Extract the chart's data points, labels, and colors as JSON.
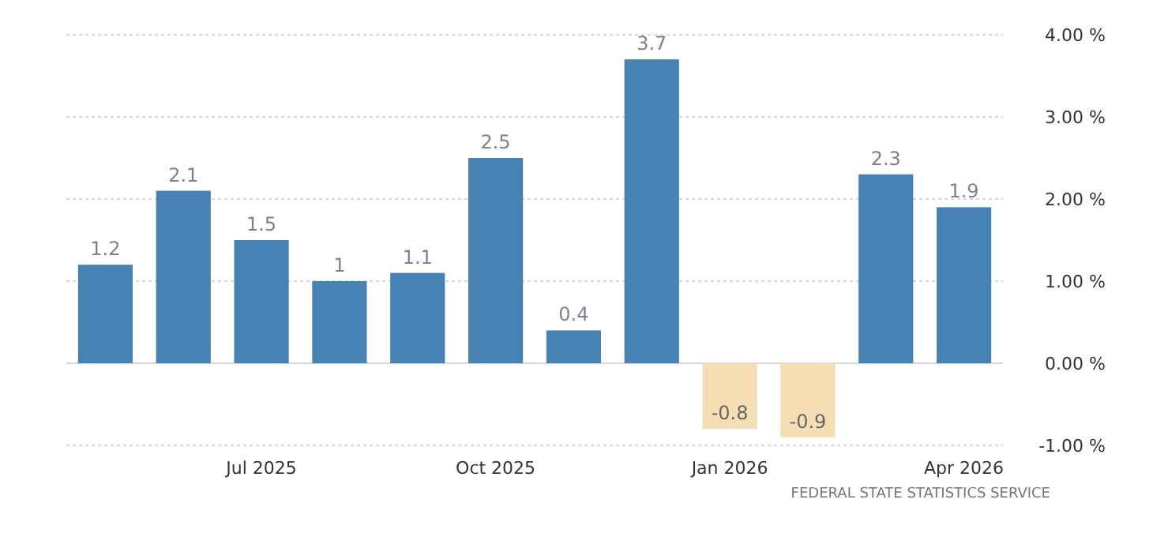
{
  "chart_data": {
    "type": "bar",
    "categories": [
      null,
      null,
      "Jul 2025",
      null,
      null,
      "Oct 2025",
      null,
      null,
      "Jan 2026",
      null,
      null,
      "Apr 2026"
    ],
    "values": [
      1.2,
      2.1,
      1.5,
      1,
      1.1,
      2.5,
      0.4,
      3.7,
      -0.8,
      -0.9,
      2.3,
      1.9
    ],
    "colors": [
      "#4682b4",
      "#4682b4",
      "#4682b4",
      "#4682b4",
      "#4682b4",
      "#4682b4",
      "#4682b4",
      "#4682b4",
      "#f5deb3",
      "#f5deb3",
      "#4682b4",
      "#4682b4"
    ],
    "ylim": [
      -1,
      4
    ],
    "yticks": [
      {
        "value": 4,
        "label": "4.00 %"
      },
      {
        "value": 3,
        "label": "3.00 %"
      },
      {
        "value": 2,
        "label": "2.00 %"
      },
      {
        "value": 1,
        "label": "1.00 %"
      },
      {
        "value": 0,
        "label": "0.00 %"
      },
      {
        "value": -1,
        "label": "-1.00 %"
      }
    ],
    "grid": "y",
    "data_labels": true,
    "annotations": [
      "FEDERAL STATE STATISTICS SERVICE"
    ]
  }
}
